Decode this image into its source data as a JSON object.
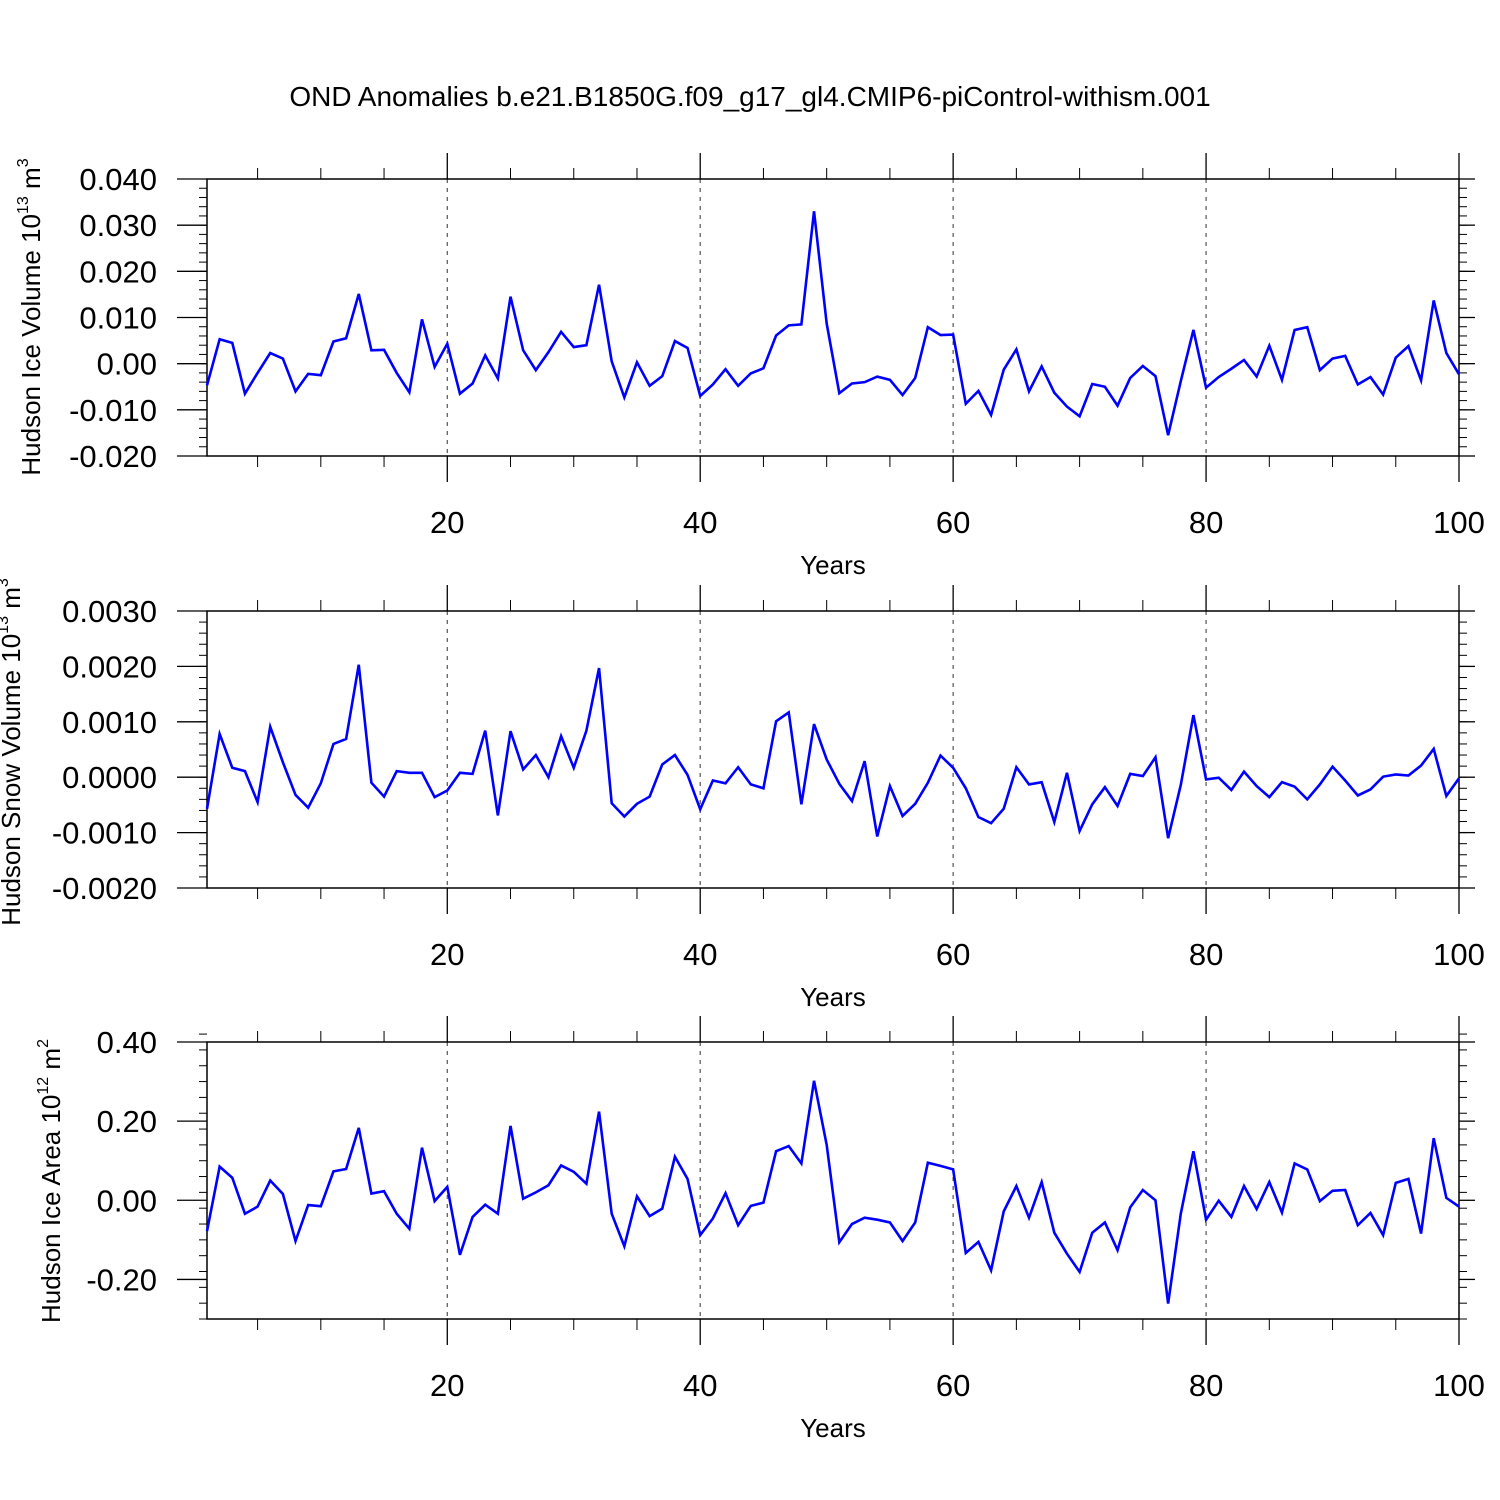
{
  "title": "OND Anomalies b.e21.B1850G.f09_g17_gl4.CMIP6-piControl-withism.001",
  "colors": {
    "series": "#0000ff",
    "axis": "#000000",
    "grid": "#555555"
  },
  "chart_data": [
    {
      "type": "line",
      "ylabel_prefix": "Hudson Ice Volume 10",
      "ylabel_exp": "13",
      "ylabel_unit": " m",
      "ylabel_unit_exp": "3",
      "xlabel": "Years",
      "xlim": [
        1,
        100
      ],
      "ylim": [
        -0.02,
        0.04
      ],
      "yticks": [
        "0.040",
        "0.030",
        "0.020",
        "0.010",
        "0.00",
        "-0.010",
        "-0.020"
      ],
      "ytick_values": [
        0.04,
        0.03,
        0.02,
        0.01,
        0.0,
        -0.01,
        -0.02
      ],
      "xticks": [
        "20",
        "40",
        "60",
        "80",
        "100"
      ],
      "xtick_values": [
        20,
        40,
        60,
        80,
        100
      ],
      "series": [
        {
          "name": "Hudson Ice Volume",
          "values": [
            -0.0047,
            0.0053,
            0.0045,
            -0.0065,
            -0.002,
            0.0023,
            0.0011,
            -0.006,
            -0.0022,
            -0.0025,
            0.0048,
            0.0055,
            0.0151,
            0.0029,
            0.003,
            -0.002,
            -0.0062,
            0.0096,
            -0.0007,
            0.0043,
            -0.0065,
            -0.0043,
            0.0018,
            -0.0032,
            0.0145,
            0.0029,
            -0.0014,
            0.0025,
            0.0069,
            0.0036,
            0.004,
            0.0171,
            0.0005,
            -0.0073,
            0.0003,
            -0.0048,
            -0.0027,
            0.0049,
            0.0034,
            -0.007,
            -0.0045,
            -0.0012,
            -0.0048,
            -0.0021,
            -0.001,
            0.0061,
            0.0083,
            0.0085,
            0.033,
            0.0087,
            -0.0064,
            -0.0043,
            -0.004,
            -0.0028,
            -0.0035,
            -0.0068,
            -0.0031,
            0.0079,
            0.0062,
            0.0063,
            -0.0087,
            -0.0059,
            -0.0111,
            -0.0013,
            0.0031,
            -0.006,
            -0.0006,
            -0.0063,
            -0.0093,
            -0.0114,
            -0.0044,
            -0.005,
            -0.0091,
            -0.0031,
            -0.0005,
            -0.0027,
            -0.0155,
            -0.0038,
            0.0073,
            -0.0052,
            -0.0029,
            -0.0011,
            0.0008,
            -0.0028,
            0.0039,
            -0.0035,
            0.0073,
            0.0079,
            -0.0014,
            0.0011,
            0.0017,
            -0.0045,
            -0.0029,
            -0.0067,
            0.0013,
            0.0038,
            -0.0036,
            0.0137,
            0.0023,
            -0.0023
          ]
        }
      ]
    },
    {
      "type": "line",
      "ylabel_prefix": "Hudson Snow Volume 10",
      "ylabel_exp": "13",
      "ylabel_unit": " m",
      "ylabel_unit_exp": "3",
      "xlabel": "Years",
      "xlim": [
        1,
        100
      ],
      "ylim": [
        -0.002,
        0.003
      ],
      "yticks": [
        "0.0030",
        "0.0020",
        "0.0010",
        "0.0000",
        "-0.0010",
        "-0.0020"
      ],
      "ytick_values": [
        0.003,
        0.002,
        0.001,
        0.0,
        -0.001,
        -0.002
      ],
      "xticks": [
        "20",
        "40",
        "60",
        "80",
        "100"
      ],
      "xtick_values": [
        20,
        40,
        60,
        80,
        100
      ],
      "series": [
        {
          "name": "Hudson Snow Volume",
          "values": [
            -0.00057,
            0.00078,
            0.00017,
            0.00011,
            -0.00045,
            0.00091,
            0.00027,
            -0.00032,
            -0.00055,
            -0.00011,
            0.0006,
            0.00069,
            0.00203,
            -0.0001,
            -0.00035,
            0.00011,
            8e-05,
            8e-05,
            -0.00036,
            -0.00024,
            8e-05,
            6e-05,
            0.00084,
            -0.00069,
            0.00083,
            0.00014,
            0.0004,
            0.0,
            0.00074,
            0.00017,
            0.00084,
            0.00197,
            -0.00047,
            -0.00071,
            -0.00048,
            -0.00035,
            0.00023,
            0.0004,
            4e-05,
            -0.00058,
            -6e-05,
            -0.00011,
            0.00018,
            -0.00013,
            -0.0002,
            0.00101,
            0.00117,
            -0.00049,
            0.00096,
            0.00032,
            -0.00012,
            -0.00043,
            0.00029,
            -0.00107,
            -0.00016,
            -0.0007,
            -0.00048,
            -0.0001,
            0.00039,
            0.00017,
            -0.0002,
            -0.00072,
            -0.00083,
            -0.00057,
            0.00018,
            -0.00013,
            -9e-05,
            -0.00081,
            8e-05,
            -0.00097,
            -0.00049,
            -0.00018,
            -0.00052,
            6e-05,
            2e-05,
            0.00036,
            -0.0011,
            -0.00014,
            0.00112,
            -4e-05,
            -1e-05,
            -0.00023,
            0.0001,
            -0.00016,
            -0.00036,
            -9e-05,
            -0.00017,
            -0.0004,
            -0.00013,
            0.00019,
            -6e-05,
            -0.00033,
            -0.00022,
            1e-05,
            5e-05,
            3e-05,
            0.00021,
            0.00051,
            -0.00034,
            -2e-05
          ]
        }
      ]
    },
    {
      "type": "line",
      "ylabel_prefix": "Hudson Ice Area 10",
      "ylabel_exp": "12",
      "ylabel_unit": " m",
      "ylabel_unit_exp": "2",
      "xlabel": "Years",
      "xlim": [
        1,
        100
      ],
      "ylim": [
        -0.3,
        0.4
      ],
      "yticks": [
        "0.40",
        "0.20",
        "0.00",
        "-0.20"
      ],
      "ytick_values": [
        0.4,
        0.2,
        0.0,
        -0.2
      ],
      "xticks": [
        "20",
        "40",
        "60",
        "80",
        "100"
      ],
      "xtick_values": [
        20,
        40,
        60,
        80,
        100
      ],
      "series": [
        {
          "name": "Hudson Ice Area",
          "values": [
            -0.078,
            0.085,
            0.057,
            -0.034,
            -0.016,
            0.05,
            0.016,
            -0.103,
            -0.012,
            -0.015,
            0.073,
            0.079,
            0.183,
            0.017,
            0.023,
            -0.034,
            -0.072,
            0.133,
            -0.002,
            0.034,
            -0.138,
            -0.042,
            -0.011,
            -0.034,
            0.188,
            0.004,
            0.02,
            0.038,
            0.088,
            0.072,
            0.042,
            0.224,
            -0.034,
            -0.116,
            0.01,
            -0.04,
            -0.021,
            0.11,
            0.054,
            -0.088,
            -0.046,
            0.018,
            -0.063,
            -0.014,
            -0.006,
            0.124,
            0.137,
            0.093,
            0.302,
            0.14,
            -0.106,
            -0.06,
            -0.044,
            -0.049,
            -0.056,
            -0.103,
            -0.056,
            0.095,
            0.087,
            0.078,
            -0.133,
            -0.105,
            -0.177,
            -0.028,
            0.036,
            -0.044,
            0.046,
            -0.082,
            -0.135,
            -0.181,
            -0.082,
            -0.056,
            -0.126,
            -0.018,
            0.026,
            0.0,
            -0.261,
            -0.034,
            0.124,
            -0.049,
            -0.001,
            -0.042,
            0.036,
            -0.022,
            0.046,
            -0.031,
            0.093,
            0.078,
            -0.002,
            0.024,
            0.026,
            -0.063,
            -0.032,
            -0.088,
            0.044,
            0.054,
            -0.084,
            0.157,
            0.006,
            -0.016
          ]
        }
      ]
    }
  ]
}
